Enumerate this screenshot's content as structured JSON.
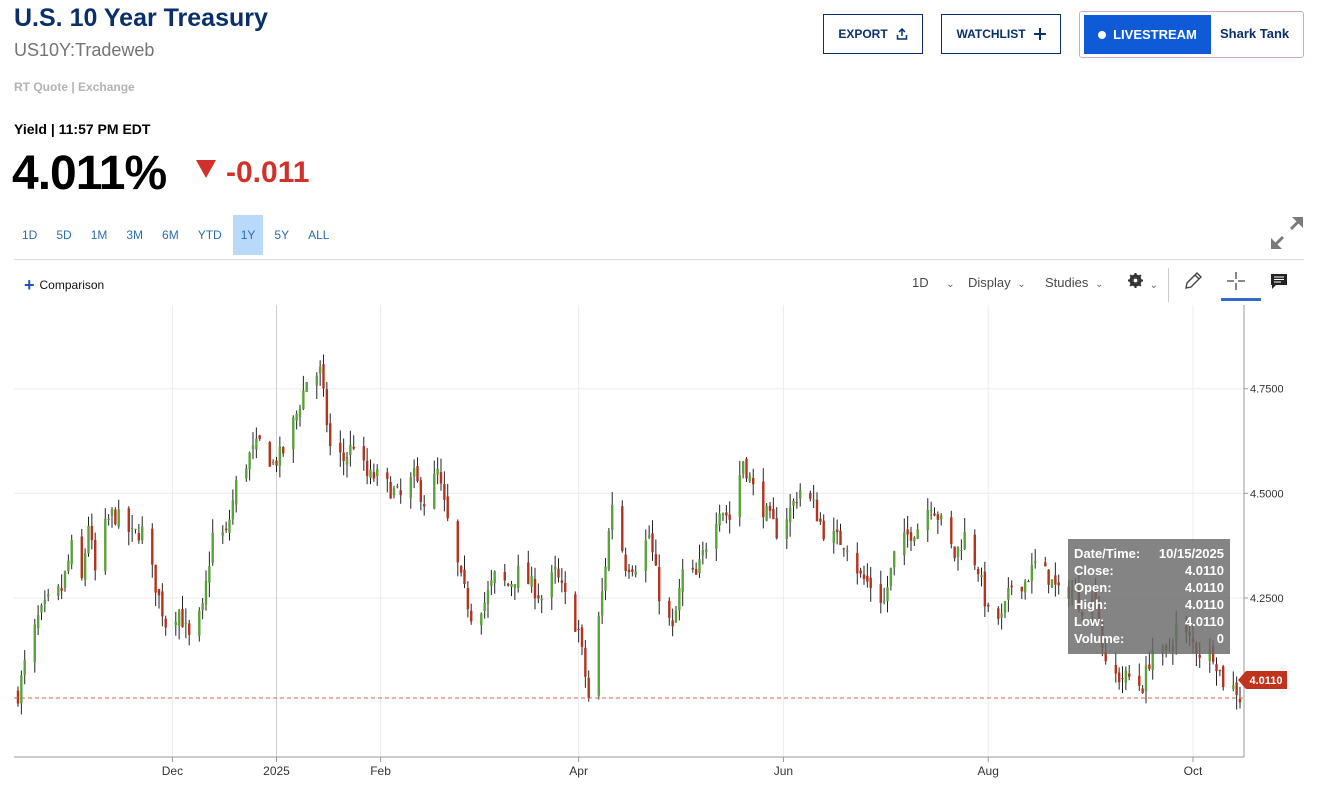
{
  "header": {
    "title": "U.S. 10 Year Treasury",
    "symbol": "US10Y:Tradeweb",
    "quote_source": "RT Quote | Exchange",
    "yield_label": "Yield | 11:57 PM EDT",
    "price": "4.011%",
    "change": "-0.011",
    "change_color": "#d0322b"
  },
  "actions": {
    "export_label": "EXPORT",
    "watchlist_label": "WATCHLIST",
    "livestream_label": "LIVESTREAM",
    "show_name": "Shark Tank"
  },
  "ranges": {
    "items": [
      "1D",
      "5D",
      "1M",
      "3M",
      "6M",
      "YTD",
      "1Y",
      "5Y",
      "ALL"
    ],
    "active": "1Y"
  },
  "toolbar": {
    "comparison_label": "Comparison",
    "interval_label": "1D",
    "display_label": "Display",
    "studies_label": "Studies"
  },
  "colors": {
    "up": "#5aa33a",
    "down": "#b5321e",
    "accent": "#2f6bd0"
  },
  "chart_data": {
    "type": "candlestick",
    "y_ticks": [
      "4.7500",
      "4.5000",
      "4.2500"
    ],
    "y_tick_values": [
      4.75,
      4.5,
      4.25
    ],
    "ylim": [
      3.87,
      4.95
    ],
    "x_ticks": [
      "Dec",
      "2025",
      "Feb",
      "Apr",
      "Jun",
      "Aug",
      "Oct"
    ],
    "x_tick_dates": [
      "2024-12-01",
      "2025-01-01",
      "2025-02-01",
      "2025-04-01",
      "2025-06-01",
      "2025-08-01",
      "2025-10-01"
    ],
    "xlim": [
      "2024-10-16",
      "2025-10-15"
    ],
    "last_value": "4.0110",
    "last_close": 4.011,
    "grid": true,
    "series": [
      {
        "values": [
          [
            "2024-10-16",
            4.02
          ],
          [
            "2024-10-18",
            4.09
          ],
          [
            "2024-10-22",
            4.2
          ],
          [
            "2024-10-25",
            4.24
          ],
          [
            "2024-10-29",
            4.27
          ],
          [
            "2024-11-01",
            4.37
          ],
          [
            "2024-11-04",
            4.29
          ],
          [
            "2024-11-06",
            4.43
          ],
          [
            "2024-11-08",
            4.31
          ],
          [
            "2024-11-11",
            4.42
          ],
          [
            "2024-11-13",
            4.45
          ],
          [
            "2024-11-15",
            4.44
          ],
          [
            "2024-11-19",
            4.4
          ],
          [
            "2024-11-22",
            4.41
          ],
          [
            "2024-11-26",
            4.28
          ],
          [
            "2024-11-29",
            4.19
          ],
          [
            "2024-12-03",
            4.22
          ],
          [
            "2024-12-06",
            4.15
          ],
          [
            "2024-12-10",
            4.22
          ],
          [
            "2024-12-13",
            4.4
          ],
          [
            "2024-12-17",
            4.4
          ],
          [
            "2024-12-20",
            4.52
          ],
          [
            "2024-12-24",
            4.59
          ],
          [
            "2024-12-27",
            4.62
          ],
          [
            "2024-12-31",
            4.57
          ],
          [
            "2025-01-03",
            4.6
          ],
          [
            "2025-01-07",
            4.69
          ],
          [
            "2025-01-10",
            4.77
          ],
          [
            "2025-01-14",
            4.79
          ],
          [
            "2025-01-17",
            4.61
          ],
          [
            "2025-01-21",
            4.58
          ],
          [
            "2025-01-24",
            4.62
          ],
          [
            "2025-01-28",
            4.54
          ],
          [
            "2025-01-31",
            4.54
          ],
          [
            "2025-02-04",
            4.51
          ],
          [
            "2025-02-07",
            4.49
          ],
          [
            "2025-02-11",
            4.54
          ],
          [
            "2025-02-14",
            4.48
          ],
          [
            "2025-02-18",
            4.55
          ],
          [
            "2025-02-21",
            4.43
          ],
          [
            "2025-02-25",
            4.29
          ],
          [
            "2025-02-28",
            4.21
          ],
          [
            "2025-03-04",
            4.24
          ],
          [
            "2025-03-07",
            4.3
          ],
          [
            "2025-03-11",
            4.28
          ],
          [
            "2025-03-14",
            4.31
          ],
          [
            "2025-03-18",
            4.28
          ],
          [
            "2025-03-21",
            4.25
          ],
          [
            "2025-03-25",
            4.31
          ],
          [
            "2025-03-28",
            4.25
          ],
          [
            "2025-04-01",
            4.17
          ],
          [
            "2025-04-04",
            4.01
          ],
          [
            "2025-04-08",
            4.26
          ],
          [
            "2025-04-11",
            4.48
          ],
          [
            "2025-04-15",
            4.33
          ],
          [
            "2025-04-18",
            4.33
          ],
          [
            "2025-04-22",
            4.4
          ],
          [
            "2025-04-25",
            4.26
          ],
          [
            "2025-04-29",
            4.17
          ],
          [
            "2025-05-02",
            4.31
          ],
          [
            "2025-05-06",
            4.3
          ],
          [
            "2025-05-09",
            4.38
          ],
          [
            "2025-05-13",
            4.47
          ],
          [
            "2025-05-16",
            4.44
          ],
          [
            "2025-05-20",
            4.58
          ],
          [
            "2025-05-23",
            4.51
          ],
          [
            "2025-05-27",
            4.45
          ],
          [
            "2025-05-30",
            4.41
          ],
          [
            "2025-06-03",
            4.46
          ],
          [
            "2025-06-06",
            4.51
          ],
          [
            "2025-06-10",
            4.47
          ],
          [
            "2025-06-13",
            4.41
          ],
          [
            "2025-06-17",
            4.39
          ],
          [
            "2025-06-20",
            4.38
          ],
          [
            "2025-06-24",
            4.3
          ],
          [
            "2025-06-27",
            4.28
          ],
          [
            "2025-07-01",
            4.24
          ],
          [
            "2025-07-04",
            4.35
          ],
          [
            "2025-07-08",
            4.4
          ],
          [
            "2025-07-11",
            4.42
          ],
          [
            "2025-07-15",
            4.48
          ],
          [
            "2025-07-18",
            4.43
          ],
          [
            "2025-07-22",
            4.35
          ],
          [
            "2025-07-25",
            4.4
          ],
          [
            "2025-07-29",
            4.32
          ],
          [
            "2025-08-01",
            4.21
          ],
          [
            "2025-08-05",
            4.2
          ],
          [
            "2025-08-08",
            4.28
          ],
          [
            "2025-08-12",
            4.29
          ],
          [
            "2025-08-15",
            4.33
          ],
          [
            "2025-08-19",
            4.3
          ],
          [
            "2025-08-22",
            4.26
          ],
          [
            "2025-08-26",
            4.27
          ],
          [
            "2025-08-29",
            4.23
          ],
          [
            "2025-09-02",
            4.26
          ],
          [
            "2025-09-05",
            4.08
          ],
          [
            "2025-09-09",
            4.06
          ],
          [
            "2025-09-12",
            4.06
          ],
          [
            "2025-09-16",
            4.04
          ],
          [
            "2025-09-19",
            4.13
          ],
          [
            "2025-09-23",
            4.11
          ],
          [
            "2025-09-26",
            4.18
          ],
          [
            "2025-09-30",
            4.15
          ],
          [
            "2025-10-03",
            4.12
          ],
          [
            "2025-10-07",
            4.12
          ],
          [
            "2025-10-10",
            4.05
          ],
          [
            "2025-10-14",
            4.03
          ],
          [
            "2025-10-15",
            4.011
          ]
        ]
      }
    ],
    "tooltip": {
      "date_label": "Date/Time:",
      "date": "10/15/2025",
      "close_label": "Close:",
      "close": "4.0110",
      "open_label": "Open:",
      "open": "4.0110",
      "high_label": "High:",
      "high": "4.0110",
      "low_label": "Low:",
      "low": "4.0110",
      "volume_label": "Volume:",
      "volume": "0"
    }
  }
}
